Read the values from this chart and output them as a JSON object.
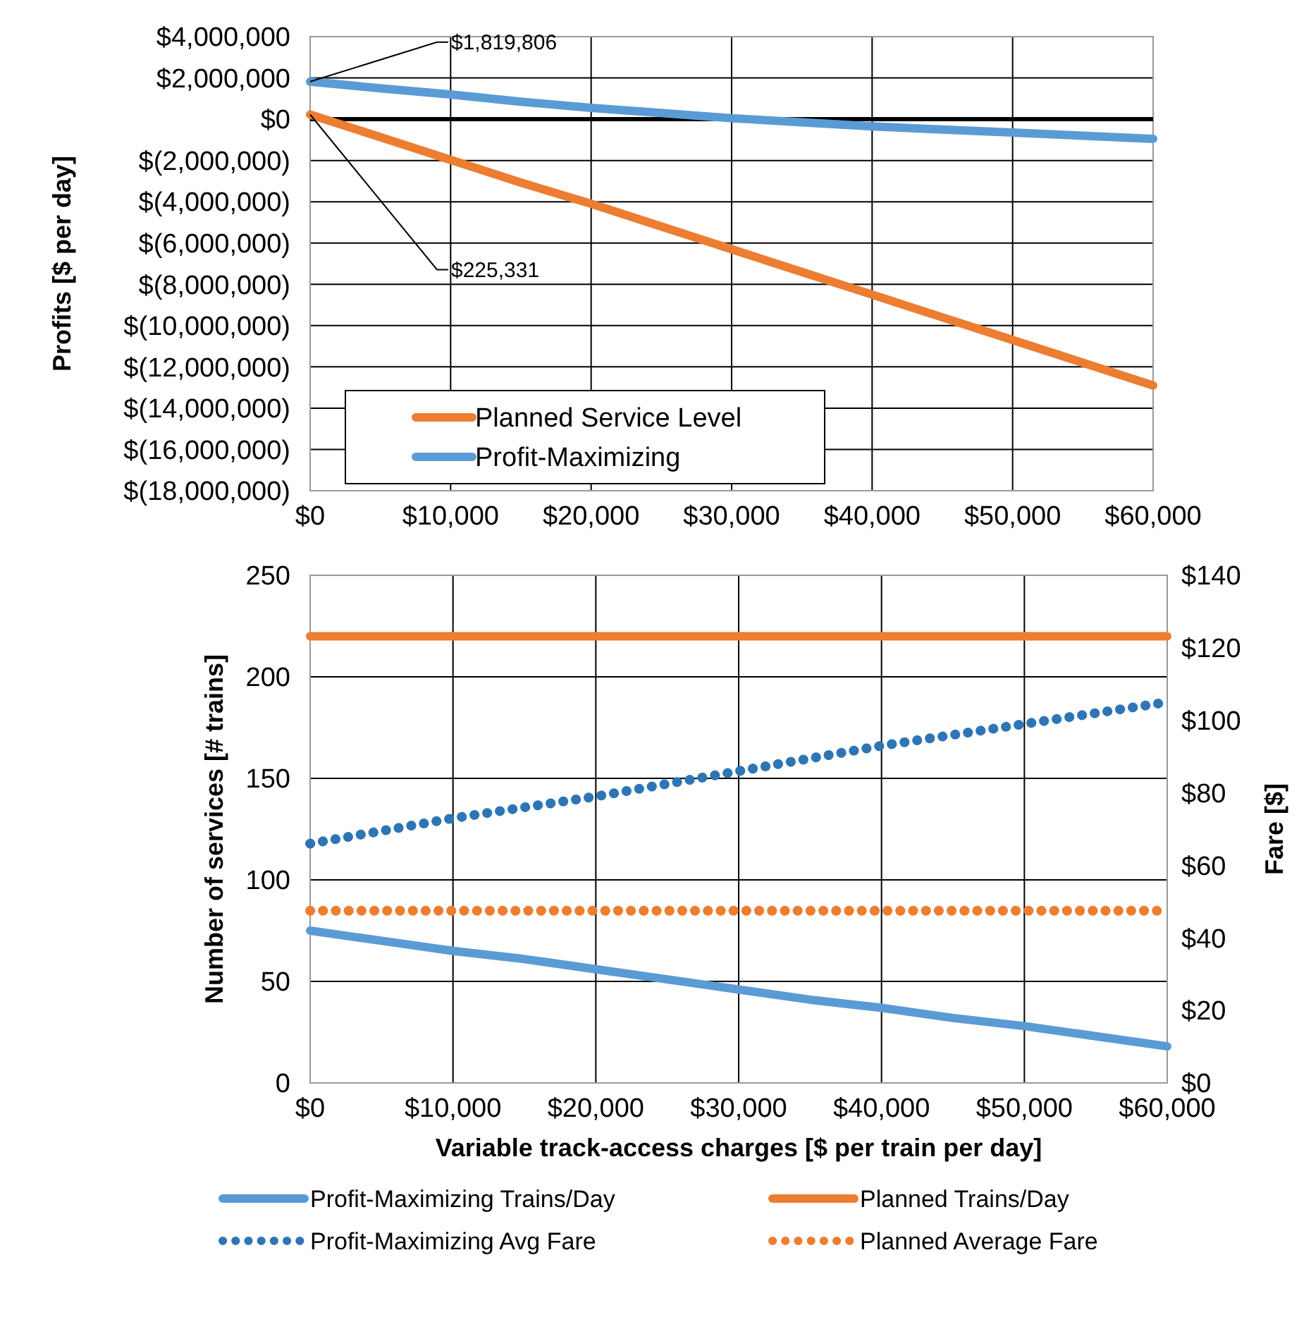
{
  "chart_data": [
    {
      "type": "line",
      "ylabel": "Profits [$ per day]",
      "x": [
        0,
        5000,
        10000,
        15000,
        20000,
        25000,
        30000,
        35000,
        40000,
        45000,
        50000,
        55000,
        60000
      ],
      "xlim": [
        0,
        60000
      ],
      "xticks": [
        {
          "value": 0,
          "label": "$0"
        },
        {
          "value": 10000,
          "label": "$10,000"
        },
        {
          "value": 20000,
          "label": "$20,000"
        },
        {
          "value": 30000,
          "label": "$30,000"
        },
        {
          "value": 40000,
          "label": "$40,000"
        },
        {
          "value": 50000,
          "label": "$50,000"
        },
        {
          "value": 60000,
          "label": "$60,000"
        }
      ],
      "ylim": [
        -18000000,
        4000000
      ],
      "yticks": [
        {
          "value": -18000000,
          "label": "$(18,000,000)"
        },
        {
          "value": -16000000,
          "label": "$(16,000,000)"
        },
        {
          "value": -14000000,
          "label": "$(14,000,000)"
        },
        {
          "value": -12000000,
          "label": "$(12,000,000)"
        },
        {
          "value": -10000000,
          "label": "$(10,000,000)"
        },
        {
          "value": -8000000,
          "label": "$(8,000,000)"
        },
        {
          "value": -6000000,
          "label": "$(6,000,000)"
        },
        {
          "value": -4000000,
          "label": "$(4,000,000)"
        },
        {
          "value": -2000000,
          "label": "$(2,000,000)"
        },
        {
          "value": 0,
          "label": "$0"
        },
        {
          "value": 2000000,
          "label": "$2,000,000"
        },
        {
          "value": 4000000,
          "label": "$4,000,000"
        }
      ],
      "grid": true,
      "legend": "bottom left",
      "marker": "none",
      "ref_lines": [
        {
          "axis": "y",
          "value": 0,
          "color": "#000000"
        }
      ],
      "annotations": [
        {
          "text": "$1,819,806",
          "x": 0,
          "y": 1819806
        },
        {
          "text": "$225,331",
          "x": 0,
          "y": 225331
        }
      ],
      "series": [
        {
          "name": "Planned Service Level",
          "color": "#ed7d31",
          "line_style": "solid",
          "values": [
            225331,
            -870000,
            -1970000,
            -3070000,
            -4100000,
            -5200000,
            -6300000,
            -7400000,
            -8500000,
            -9600000,
            -10700000,
            -11800000,
            -12900000
          ]
        },
        {
          "name": "Profit-Maximizing",
          "color": "#5b9bd5",
          "line_style": "solid",
          "values": [
            1819806,
            1500000,
            1200000,
            850000,
            550000,
            300000,
            50000,
            -150000,
            -350000,
            -500000,
            -650000,
            -800000,
            -950000
          ]
        }
      ]
    },
    {
      "type": "line",
      "xlabel": "Variable track-access charges [$ per train per day]",
      "ylabel": "Number of services [# trains]",
      "y2label": "Fare [$]",
      "x": [
        0,
        5000,
        10000,
        15000,
        20000,
        25000,
        30000,
        35000,
        40000,
        45000,
        50000,
        55000,
        60000
      ],
      "xlim": [
        0,
        60000
      ],
      "xticks": [
        {
          "value": 0,
          "label": "$0"
        },
        {
          "value": 10000,
          "label": "$10,000"
        },
        {
          "value": 20000,
          "label": "$20,000"
        },
        {
          "value": 30000,
          "label": "$30,000"
        },
        {
          "value": 40000,
          "label": "$40,000"
        },
        {
          "value": 50000,
          "label": "$50,000"
        },
        {
          "value": 60000,
          "label": "$60,000"
        }
      ],
      "ylim": [
        0,
        250
      ],
      "yticks": [
        0,
        50,
        100,
        150,
        200,
        250
      ],
      "y2lim": [
        0,
        140
      ],
      "y2ticks": [
        {
          "value": 0,
          "label": "$0"
        },
        {
          "value": 20,
          "label": "$20"
        },
        {
          "value": 40,
          "label": "$40"
        },
        {
          "value": 60,
          "label": "$60"
        },
        {
          "value": 80,
          "label": "$80"
        },
        {
          "value": 100,
          "label": "$100"
        },
        {
          "value": 120,
          "label": "$120"
        },
        {
          "value": 140,
          "label": "$140"
        }
      ],
      "grid": true,
      "legend": "bottom",
      "marker": "none",
      "series": [
        {
          "name": "Profit-Maximizing Trains/Day",
          "color": "#5b9bd5",
          "line_style": "solid",
          "values": [
            75,
            70,
            65,
            61,
            56,
            51,
            46,
            41,
            37,
            32,
            28,
            23,
            18
          ]
        },
        {
          "name": "Planned Trains/Day",
          "color": "#ed7d31",
          "line_style": "solid",
          "values": [
            220,
            220,
            220,
            220,
            220,
            220,
            220,
            220,
            220,
            220,
            220,
            220,
            220
          ]
        },
        {
          "name": "Profit-Maximizing Avg Fare",
          "color": "#2e75b6",
          "line_style": "dotted",
          "axis": "y2",
          "values": [
            66,
            69.5,
            73,
            76,
            79,
            82.5,
            86,
            89.5,
            93,
            96,
            99,
            102,
            105
          ]
        },
        {
          "name": "Planned Average Fare",
          "color": "#ed7d31",
          "line_style": "dotted",
          "axis": "y2",
          "values": [
            47.5,
            47.5,
            47.5,
            47.5,
            47.5,
            47.5,
            47.5,
            47.5,
            47.5,
            47.5,
            47.5,
            47.5,
            47.5
          ]
        }
      ]
    }
  ]
}
